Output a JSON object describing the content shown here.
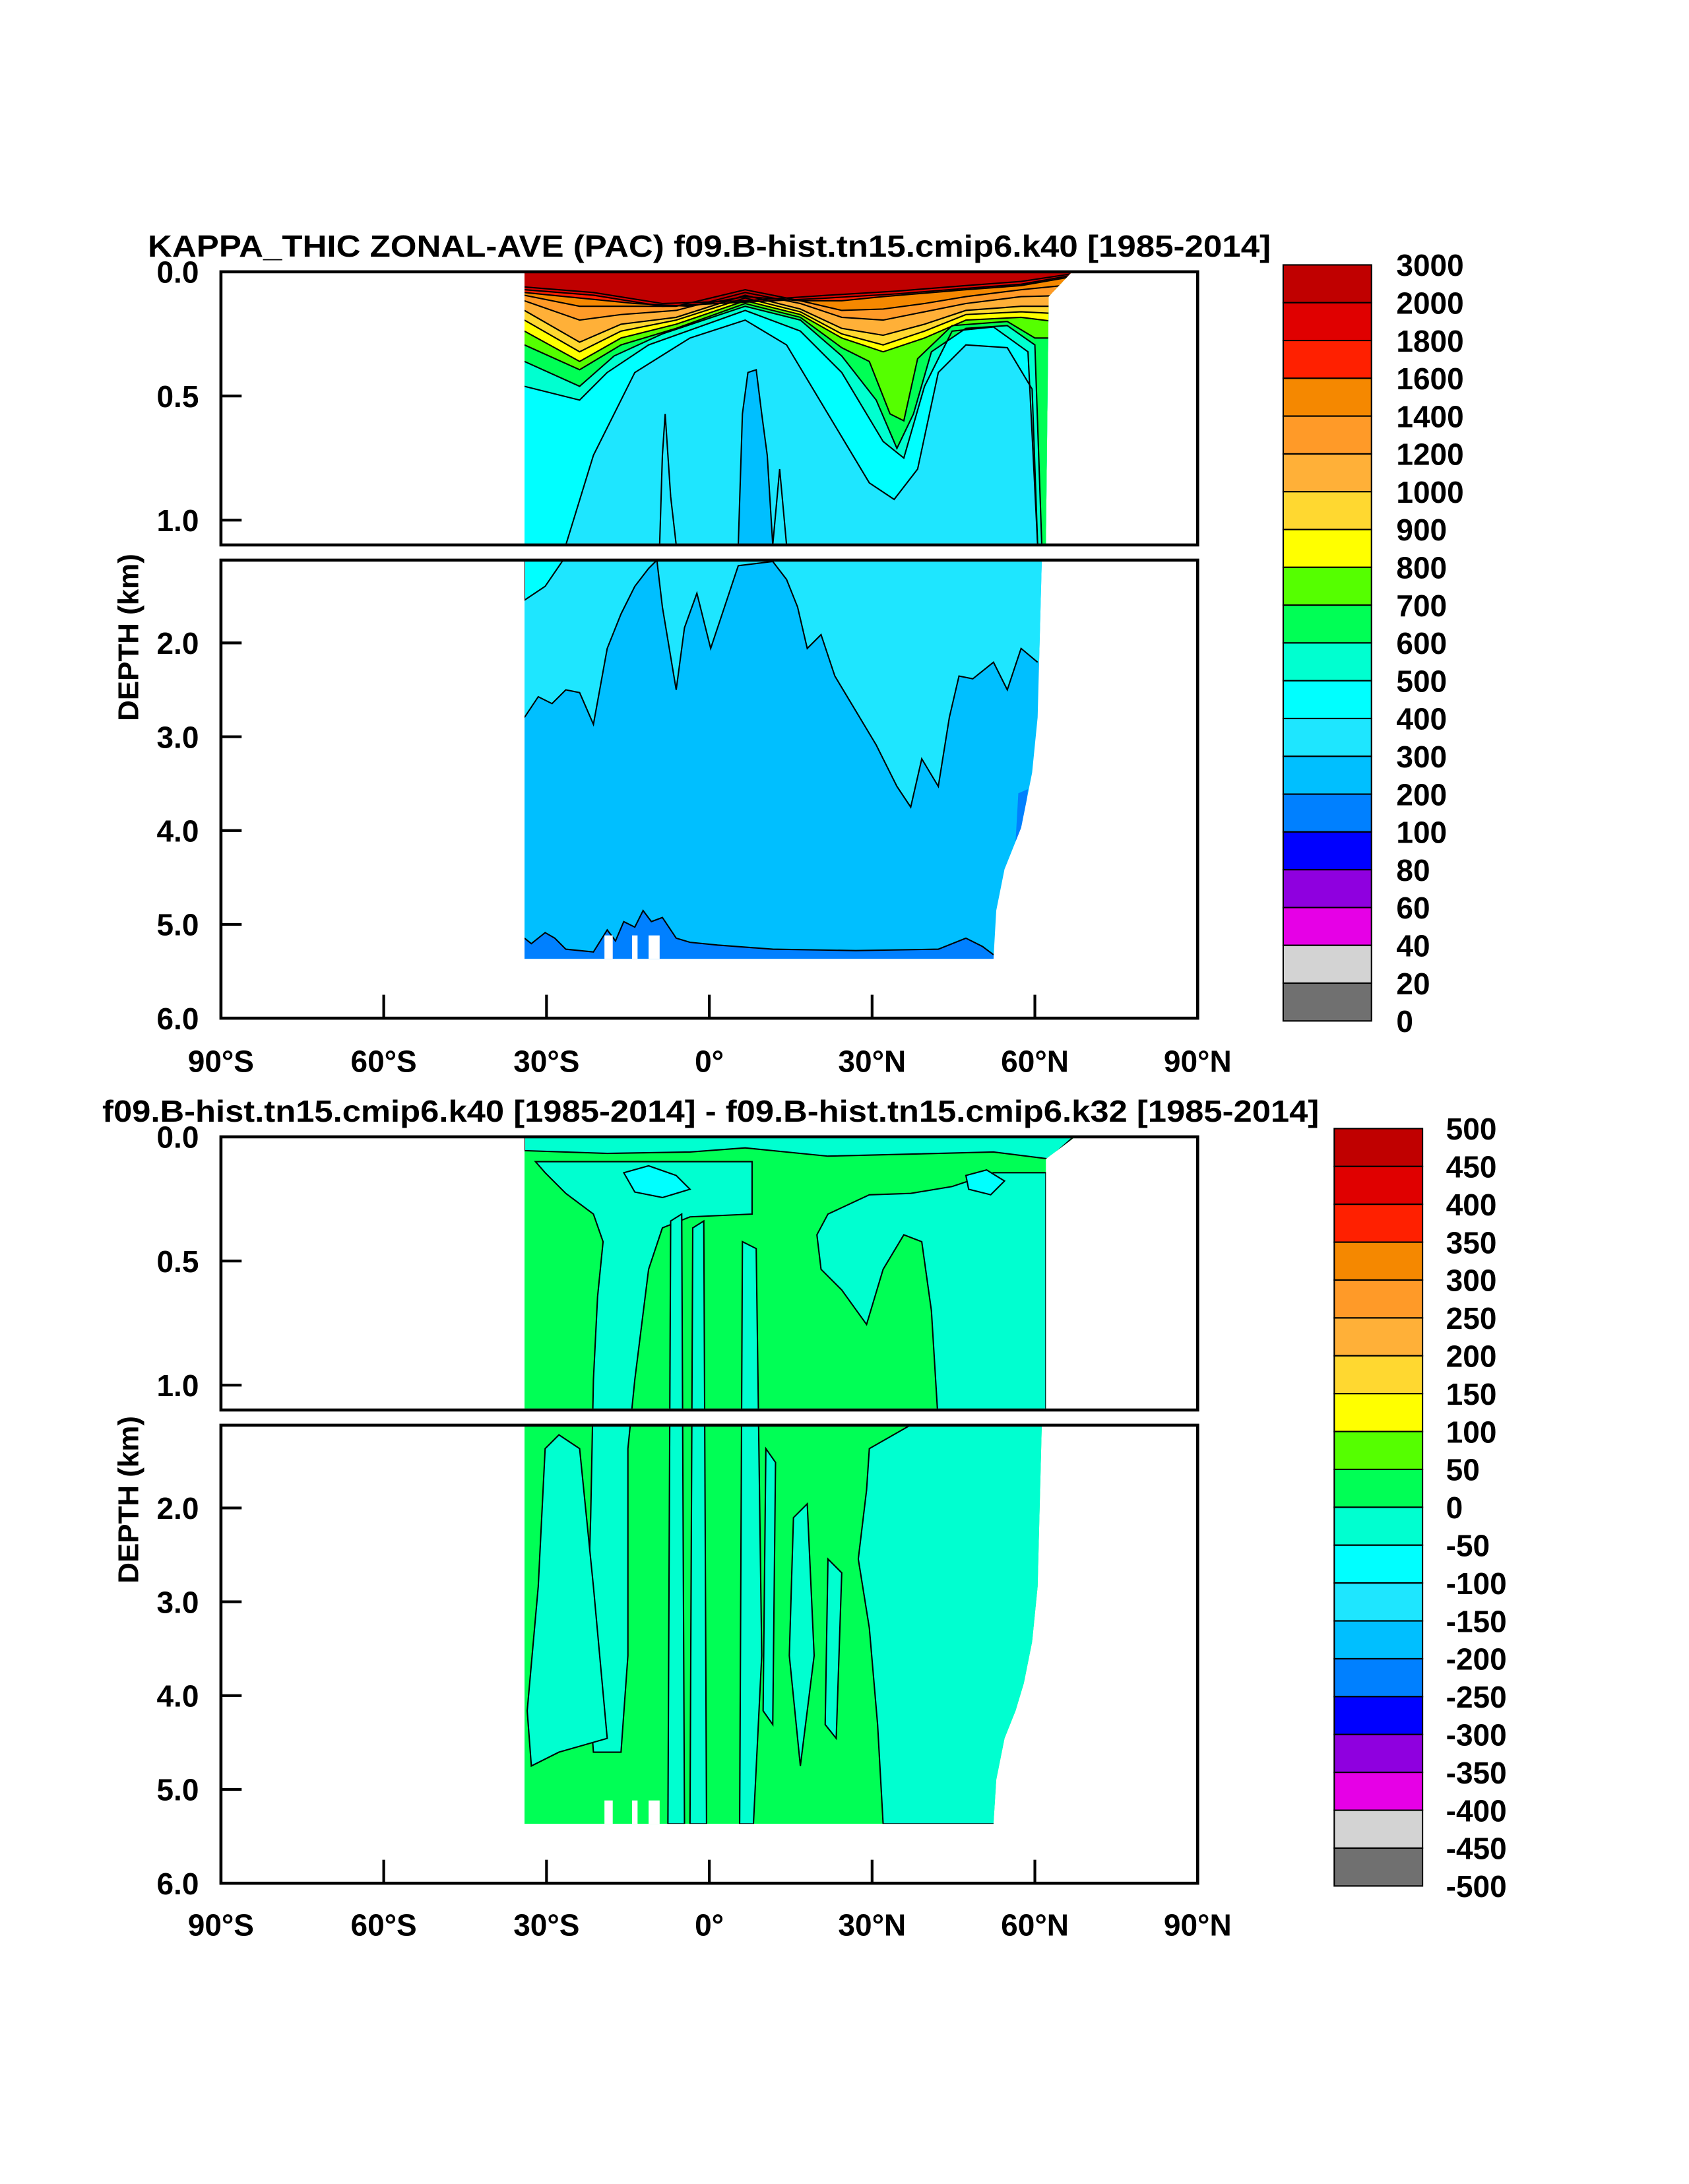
{
  "chart_data": [
    {
      "type": "heatmap",
      "subtype": "filled-contour",
      "title": "KAPPA_THIC ZONAL-AVE (PAC) f09.B-hist.tn15.cmip6.k40 [1985-2014]",
      "xlabel": "",
      "ylabel": "DEPTH (km)",
      "x_range": [
        -90,
        90
      ],
      "x_tick_values": [
        -90,
        -60,
        -30,
        0,
        30,
        60,
        90
      ],
      "x_tick_labels": [
        "90°S",
        "60°S",
        "30°S",
        "0°",
        "30°N",
        "60°N",
        "90°N"
      ],
      "y_range": [
        0,
        6
      ],
      "y_break": [
        1.1,
        1.12
      ],
      "y_tick_values": [
        0,
        0.5,
        1.0,
        2.0,
        3.0,
        4.0,
        5.0,
        6.0
      ],
      "y_tick_labels": [
        "0.0",
        "0.5",
        "1.0",
        "2.0",
        "3.0",
        "4.0",
        "5.0",
        "6.0"
      ],
      "data_lon_extent": [
        -34,
        66
      ],
      "colorbar": {
        "labels": [
          "3000",
          "2000",
          "1800",
          "1600",
          "1400",
          "1200",
          "1000",
          "900",
          "800",
          "700",
          "600",
          "500",
          "400",
          "300",
          "200",
          "100",
          "80",
          "60",
          "40",
          "20",
          "0"
        ],
        "colors": [
          "#C00000",
          "#E00000",
          "#FF2000",
          "#F58800",
          "#FF9A28",
          "#FFB038",
          "#FFD830",
          "#FFFF00",
          "#55FF00",
          "#00FF55",
          "#00FFD0",
          "#00FFFF",
          "#1EE6FF",
          "#00BFFF",
          "#0080FF",
          "#0000FF",
          "#8F00DF",
          "#E600E6",
          "#D3D3D3",
          "#707070"
        ]
      }
    },
    {
      "type": "heatmap",
      "subtype": "filled-contour",
      "title": "f09.B-hist.tn15.cmip6.k40 [1985-2014] - f09.B-hist.tn15.cmip6.k32 [1985-2014]",
      "xlabel": "",
      "ylabel": "DEPTH (km)",
      "x_range": [
        -90,
        90
      ],
      "x_tick_values": [
        -90,
        -60,
        -30,
        0,
        30,
        60,
        90
      ],
      "x_tick_labels": [
        "90°S",
        "60°S",
        "30°S",
        "0°",
        "30°N",
        "60°N",
        "90°N"
      ],
      "y_range": [
        0,
        6
      ],
      "y_break": [
        1.1,
        1.12
      ],
      "y_tick_values": [
        0,
        0.5,
        1.0,
        2.0,
        3.0,
        4.0,
        5.0,
        6.0
      ],
      "y_tick_labels": [
        "0.0",
        "0.5",
        "1.0",
        "2.0",
        "3.0",
        "4.0",
        "5.0",
        "6.0"
      ],
      "data_lon_extent": [
        -34,
        62
      ],
      "colorbar": {
        "labels": [
          "500",
          "450",
          "400",
          "350",
          "300",
          "250",
          "200",
          "150",
          "100",
          "50",
          "0",
          "-50",
          "-100",
          "-150",
          "-200",
          "-250",
          "-300",
          "-350",
          "-400",
          "-450",
          "-500"
        ],
        "colors": [
          "#C00000",
          "#E00000",
          "#FF2000",
          "#F58800",
          "#FF9A28",
          "#FFB038",
          "#FFD830",
          "#FFFF00",
          "#55FF00",
          "#00FF55",
          "#00FFD0",
          "#00FFFF",
          "#1EE6FF",
          "#00BFFF",
          "#0080FF",
          "#0000FF",
          "#8F00DF",
          "#E600E6",
          "#D3D3D3",
          "#707070"
        ]
      }
    }
  ]
}
